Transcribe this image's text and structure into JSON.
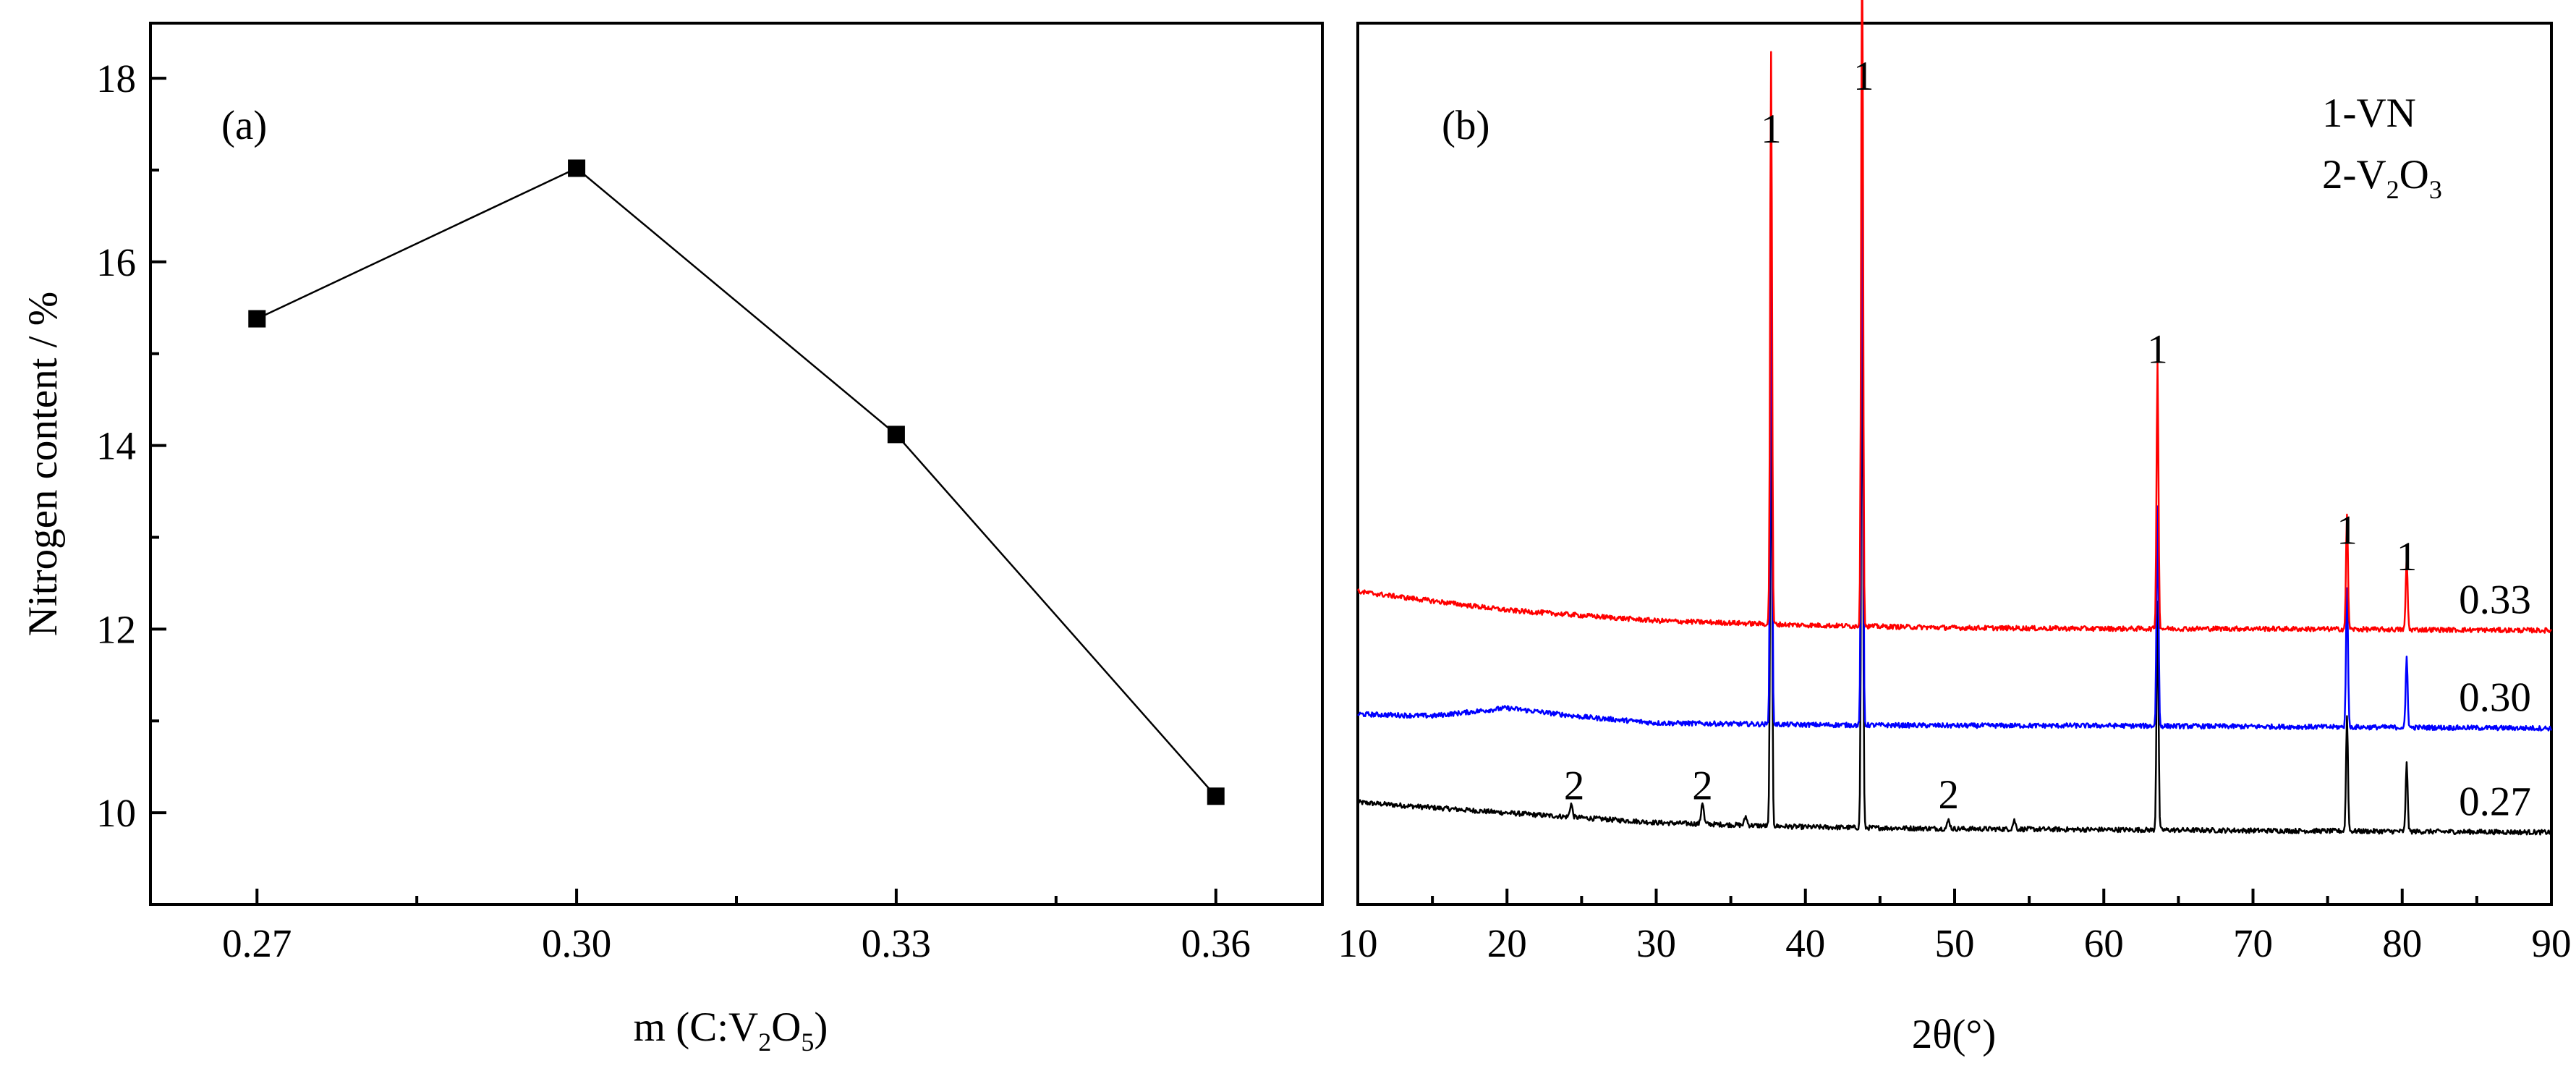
{
  "chart_data": [
    {
      "panel": "(a)",
      "type": "line",
      "title": "",
      "xlabel_main": "m (C:V",
      "xlabel_sub1": "2",
      "xlabel_mid": "O",
      "xlabel_sub2": "5",
      "xlabel_end": ")",
      "ylabel": "Nitrogen content / %",
      "x": [
        0.27,
        0.3,
        0.33,
        0.36
      ],
      "x_tick_labels": [
        "0.27",
        "0.30",
        "0.33",
        "0.36"
      ],
      "xlim": [
        0.26,
        0.37
      ],
      "ylim": [
        9.0,
        18.6
      ],
      "y_ticks": [
        10,
        12,
        14,
        16,
        18
      ],
      "y_tick_labels": [
        "10",
        "12",
        "14",
        "16",
        "18"
      ],
      "series": [
        {
          "name": "Nitrogen content",
          "marker": "square",
          "color": "#000000",
          "values": [
            15.38,
            17.02,
            14.12,
            10.18
          ]
        }
      ]
    },
    {
      "panel": "(b)",
      "type": "line",
      "title": "",
      "xlabel": "2θ(°)",
      "ylabel": "",
      "xlim": [
        10,
        90
      ],
      "x_ticks": [
        10,
        20,
        30,
        40,
        50,
        60,
        70,
        80,
        90
      ],
      "x_tick_labels": [
        "10",
        "20",
        "30",
        "40",
        "50",
        "60",
        "70",
        "80",
        "90"
      ],
      "ylim": [
        0,
        100
      ],
      "legend": {
        "line1": "1-VN",
        "line2_a": "2-V",
        "line2_sub1": "2",
        "line2_b": "O",
        "line2_sub2": "3"
      },
      "series": [
        {
          "name": "0.33",
          "label": "0.33",
          "color": "#ff0000",
          "baseline": [
            [
              10,
              35.5
            ],
            [
              20,
              33.4
            ],
            [
              30,
              32.2
            ],
            [
              40,
              31.7
            ],
            [
              50,
              31.4
            ],
            [
              60,
              31.3
            ],
            [
              70,
              31.3
            ],
            [
              80,
              31.2
            ],
            [
              90,
              31.1
            ]
          ],
          "peaks": [
            [
              37.7,
              65
            ],
            [
              43.8,
              79
            ],
            [
              63.6,
              30
            ],
            [
              76.3,
              13
            ],
            [
              80.3,
              8
            ]
          ]
        },
        {
          "name": "0.30",
          "label": "0.30",
          "color": "#0000ff",
          "baseline": [
            [
              10,
              21.6
            ],
            [
              15,
              21.4
            ],
            [
              20,
              22.3
            ],
            [
              25,
              21.3
            ],
            [
              30,
              20.6
            ],
            [
              40,
              20.4
            ],
            [
              50,
              20.3
            ],
            [
              60,
              20.3
            ],
            [
              70,
              20.2
            ],
            [
              80,
              20.1
            ],
            [
              90,
              20.0
            ]
          ],
          "peaks": [
            [
              37.7,
              58
            ],
            [
              43.8,
              70
            ],
            [
              63.6,
              25
            ],
            [
              76.3,
              16
            ],
            [
              80.3,
              8
            ]
          ]
        },
        {
          "name": "0.27",
          "label": "0.27",
          "color": "#000000",
          "baseline": [
            [
              10,
              11.6
            ],
            [
              20,
              10.4
            ],
            [
              30,
              9.3
            ],
            [
              40,
              8.8
            ],
            [
              50,
              8.6
            ],
            [
              60,
              8.5
            ],
            [
              70,
              8.4
            ],
            [
              80,
              8.3
            ],
            [
              90,
              8.2
            ]
          ],
          "peaks": [
            [
              24.3,
              1.5
            ],
            [
              33.1,
              2.5
            ],
            [
              36.0,
              1.0
            ],
            [
              37.7,
              52
            ],
            [
              43.8,
              62
            ],
            [
              49.6,
              1.0
            ],
            [
              54.0,
              1.0
            ],
            [
              63.6,
              26
            ],
            [
              76.3,
              13
            ],
            [
              80.3,
              8
            ]
          ]
        }
      ],
      "peak_annotations": [
        {
          "text": "1",
          "x": 37.7,
          "y": 88
        },
        {
          "text": "1",
          "x": 43.9,
          "y": 94
        },
        {
          "text": "1",
          "x": 63.6,
          "y": 63
        },
        {
          "text": "1",
          "x": 76.3,
          "y": 42.5
        },
        {
          "text": "1",
          "x": 80.3,
          "y": 39.5
        },
        {
          "text": "2",
          "x": 24.5,
          "y": 13.5
        },
        {
          "text": "2",
          "x": 33.1,
          "y": 13.5
        },
        {
          "text": "2",
          "x": 49.6,
          "y": 12.5
        }
      ]
    }
  ]
}
